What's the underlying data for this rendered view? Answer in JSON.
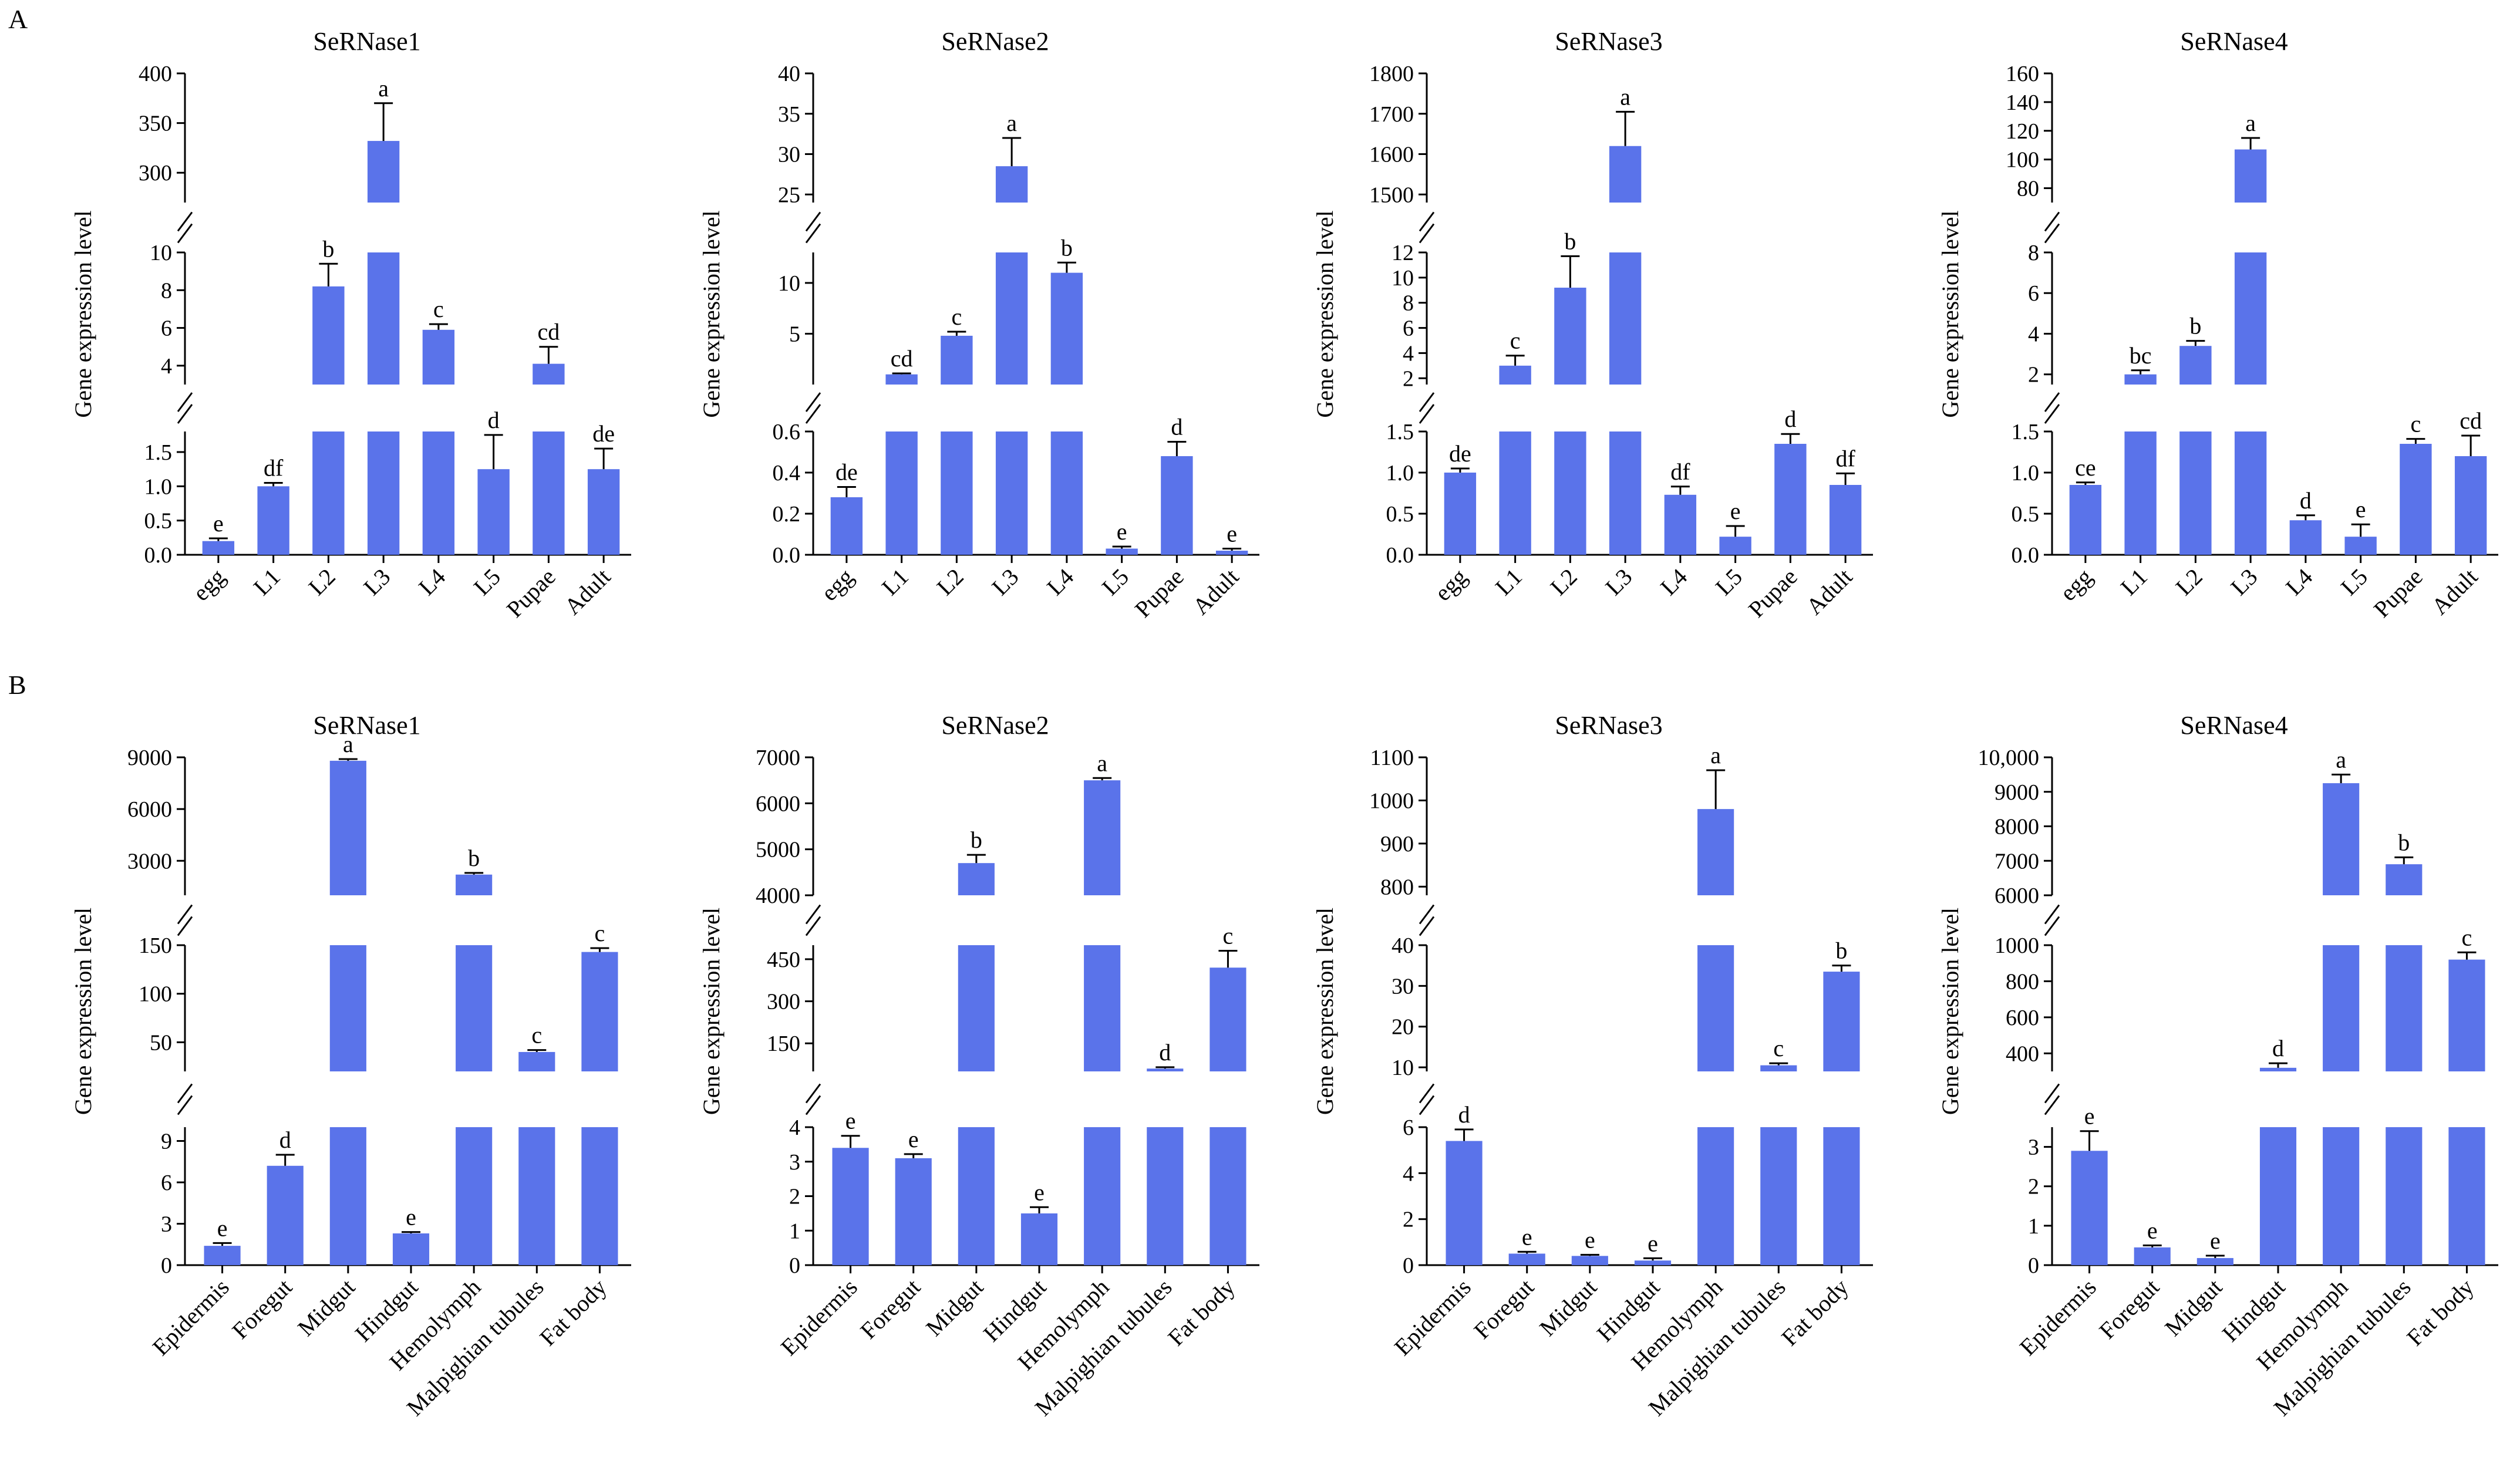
{
  "panel_labels": [
    "A",
    "B"
  ],
  "colors": {
    "bar": "#5a73ea",
    "axis": "#000000",
    "background": "#ffffff"
  },
  "chart_data": [
    {
      "type": "bar",
      "panel": "A",
      "title": "SeRNase1",
      "ylabel": "Gene expression level",
      "categories": [
        "egg",
        "L1",
        "L2",
        "L3",
        "L4",
        "L5",
        "Pupae",
        "Adult"
      ],
      "values": [
        0.2,
        1.0,
        8.2,
        332,
        5.9,
        1.25,
        4.1,
        1.25
      ],
      "errors": [
        0.04,
        0.05,
        1.2,
        38,
        0.3,
        0.5,
        0.9,
        0.3
      ],
      "letters": [
        "e",
        "df",
        "b",
        "a",
        "c",
        "d",
        "cd",
        "de"
      ],
      "segments": [
        {
          "range": [
            0,
            1.8
          ],
          "ticks": [
            0,
            0.5,
            1.0,
            1.5
          ],
          "labels": [
            "0.0",
            "0.5",
            "1.0",
            "1.5"
          ]
        },
        {
          "range": [
            3,
            10
          ],
          "ticks": [
            4,
            6,
            8,
            10
          ],
          "labels": [
            "4",
            "6",
            "8",
            "10"
          ]
        },
        {
          "range": [
            270,
            400
          ],
          "ticks": [
            300,
            350,
            400
          ],
          "labels": [
            "300",
            "350",
            "400"
          ]
        }
      ]
    },
    {
      "type": "bar",
      "panel": "A",
      "title": "SeRNase2",
      "ylabel": "Gene expression level",
      "categories": [
        "egg",
        "L1",
        "L2",
        "L3",
        "L4",
        "L5",
        "Pupae",
        "Adult"
      ],
      "values": [
        0.28,
        1.0,
        4.8,
        28.5,
        11.0,
        0.03,
        0.48,
        0.02
      ],
      "errors": [
        0.05,
        0.1,
        0.4,
        3.5,
        1.0,
        0.01,
        0.07,
        0.01
      ],
      "letters": [
        "de",
        "cd",
        "c",
        "a",
        "b",
        "e",
        "d",
        "e"
      ],
      "segments": [
        {
          "range": [
            0,
            0.6
          ],
          "ticks": [
            0,
            0.2,
            0.4,
            0.6
          ],
          "labels": [
            "0.0",
            "0.2",
            "0.4",
            "0.6"
          ]
        },
        {
          "range": [
            0,
            13
          ],
          "ticks": [
            5,
            10
          ],
          "labels": [
            "5",
            "10"
          ]
        },
        {
          "range": [
            24,
            40
          ],
          "ticks": [
            25,
            30,
            35,
            40
          ],
          "labels": [
            "25",
            "30",
            "35",
            "40"
          ]
        }
      ]
    },
    {
      "type": "bar",
      "panel": "A",
      "title": "SeRNase3",
      "ylabel": "Gene expression level",
      "categories": [
        "egg",
        "L1",
        "L2",
        "L3",
        "L4",
        "L5",
        "Pupae",
        "Adult"
      ],
      "values": [
        1.0,
        3.0,
        9.2,
        1620,
        0.73,
        0.22,
        1.35,
        0.85
      ],
      "errors": [
        0.05,
        0.8,
        2.5,
        85,
        0.1,
        0.13,
        0.12,
        0.14
      ],
      "letters": [
        "de",
        "c",
        "b",
        "a",
        "df",
        "e",
        "d",
        "df"
      ],
      "segments": [
        {
          "range": [
            0,
            1.5
          ],
          "ticks": [
            0,
            0.5,
            1.0,
            1.5
          ],
          "labels": [
            "0.0",
            "0.5",
            "1.0",
            "1.5"
          ]
        },
        {
          "range": [
            1.5,
            12
          ],
          "ticks": [
            2,
            4,
            6,
            8,
            10,
            12
          ],
          "labels": [
            "2",
            "4",
            "6",
            "8",
            "10",
            "12"
          ]
        },
        {
          "range": [
            1480,
            1800
          ],
          "ticks": [
            1500,
            1600,
            1700,
            1800
          ],
          "labels": [
            "1500",
            "1600",
            "1700",
            "1800"
          ]
        }
      ]
    },
    {
      "type": "bar",
      "panel": "A",
      "title": "SeRNase4",
      "ylabel": "Gene expression level",
      "categories": [
        "egg",
        "L1",
        "L2",
        "L3",
        "L4",
        "L5",
        "Pupae",
        "Adult"
      ],
      "values": [
        0.85,
        2.0,
        3.4,
        107,
        0.42,
        0.22,
        1.35,
        1.2
      ],
      "errors": [
        0.03,
        0.2,
        0.25,
        8,
        0.06,
        0.15,
        0.06,
        0.25
      ],
      "letters": [
        "ce",
        "bc",
        "b",
        "a",
        "d",
        "e",
        "c",
        "cd"
      ],
      "segments": [
        {
          "range": [
            0,
            1.5
          ],
          "ticks": [
            0,
            0.5,
            1.0,
            1.5
          ],
          "labels": [
            "0.0",
            "0.5",
            "1.0",
            "1.5"
          ]
        },
        {
          "range": [
            1.5,
            8
          ],
          "ticks": [
            2,
            4,
            6,
            8
          ],
          "labels": [
            "2",
            "4",
            "6",
            "8"
          ]
        },
        {
          "range": [
            70,
            160
          ],
          "ticks": [
            80,
            100,
            120,
            140,
            160
          ],
          "labels": [
            "80",
            "100",
            "120",
            "140",
            "160"
          ]
        }
      ]
    },
    {
      "type": "bar",
      "panel": "B",
      "title": "SeRNase1",
      "ylabel": "Gene expression level",
      "categories": [
        "Epidermis",
        "Foregut",
        "Midgut",
        "Hindgut",
        "Hemolymph",
        "Malpighian tubules",
        "Fat body"
      ],
      "values": [
        1.4,
        7.2,
        8800,
        2.3,
        2200,
        40,
        143
      ],
      "errors": [
        0.2,
        0.8,
        100,
        0.1,
        100,
        2,
        4
      ],
      "letters": [
        "e",
        "d",
        "a",
        "e",
        "b",
        "c",
        "c"
      ],
      "segments": [
        {
          "range": [
            0,
            10
          ],
          "ticks": [
            0,
            3,
            6,
            9
          ],
          "labels": [
            "0",
            "3",
            "6",
            "9"
          ]
        },
        {
          "range": [
            20,
            150
          ],
          "ticks": [
            50,
            100,
            150
          ],
          "labels": [
            "50",
            "100",
            "150"
          ]
        },
        {
          "range": [
            1000,
            9000
          ],
          "ticks": [
            3000,
            6000,
            9000
          ],
          "labels": [
            "3000",
            "6000",
            "9000"
          ]
        }
      ]
    },
    {
      "type": "bar",
      "panel": "B",
      "title": "SeRNase2",
      "ylabel": "Gene expression level",
      "categories": [
        "Epidermis",
        "Foregut",
        "Midgut",
        "Hindgut",
        "Hemolymph",
        "Malpighian tubules",
        "Fat body"
      ],
      "values": [
        3.4,
        3.1,
        4700,
        1.5,
        6500,
        60,
        420
      ],
      "errors": [
        0.35,
        0.12,
        180,
        0.18,
        50,
        5,
        60
      ],
      "letters": [
        "e",
        "e",
        "b",
        "e",
        "a",
        "d",
        "c"
      ],
      "segments": [
        {
          "range": [
            0,
            4
          ],
          "ticks": [
            0,
            1,
            2,
            3,
            4
          ],
          "labels": [
            "0",
            "1",
            "2",
            "3",
            "4"
          ]
        },
        {
          "range": [
            50,
            500
          ],
          "ticks": [
            150,
            300,
            450
          ],
          "labels": [
            "150",
            "300",
            "450"
          ]
        },
        {
          "range": [
            4000,
            7000
          ],
          "ticks": [
            4000,
            5000,
            6000,
            7000
          ],
          "labels": [
            "4000",
            "5000",
            "6000",
            "7000"
          ]
        }
      ]
    },
    {
      "type": "bar",
      "panel": "B",
      "title": "SeRNase3",
      "ylabel": "Gene expression level",
      "categories": [
        "Epidermis",
        "Foregut",
        "Midgut",
        "Hindgut",
        "Hemolymph",
        "Malpighian tubules",
        "Fat body"
      ],
      "values": [
        5.4,
        0.5,
        0.4,
        0.2,
        980,
        10.5,
        33.5
      ],
      "errors": [
        0.5,
        0.08,
        0.05,
        0.1,
        90,
        0.5,
        1.5
      ],
      "letters": [
        "d",
        "e",
        "e",
        "e",
        "a",
        "c",
        "b"
      ],
      "segments": [
        {
          "range": [
            0,
            6
          ],
          "ticks": [
            0,
            2,
            4,
            6
          ],
          "labels": [
            "0",
            "2",
            "4",
            "6"
          ]
        },
        {
          "range": [
            9,
            40
          ],
          "ticks": [
            10,
            20,
            30,
            40
          ],
          "labels": [
            "10",
            "20",
            "30",
            "40"
          ]
        },
        {
          "range": [
            780,
            1100
          ],
          "ticks": [
            800,
            900,
            1000,
            1100
          ],
          "labels": [
            "800",
            "900",
            "1000",
            "1100"
          ]
        }
      ]
    },
    {
      "type": "bar",
      "panel": "B",
      "title": "SeRNase4",
      "ylabel": "Gene expression level",
      "categories": [
        "Epidermis",
        "Foregut",
        "Midgut",
        "Hindgut",
        "Hemolymph",
        "Malpighian tubules",
        "Fat body"
      ],
      "values": [
        2.9,
        0.45,
        0.18,
        320,
        9250,
        6900,
        920
      ],
      "errors": [
        0.5,
        0.05,
        0.06,
        25,
        250,
        200,
        40
      ],
      "letters": [
        "e",
        "e",
        "e",
        "d",
        "a",
        "b",
        "c"
      ],
      "segments": [
        {
          "range": [
            0,
            3.5
          ],
          "ticks": [
            0,
            1,
            2,
            3
          ],
          "labels": [
            "0",
            "1",
            "2",
            "3"
          ]
        },
        {
          "range": [
            300,
            1000
          ],
          "ticks": [
            400,
            600,
            800,
            1000
          ],
          "labels": [
            "400",
            "600",
            "800",
            "1000"
          ]
        },
        {
          "range": [
            6000,
            10000
          ],
          "ticks": [
            6000,
            7000,
            8000,
            9000,
            10000
          ],
          "labels": [
            "6000",
            "7000",
            "8000",
            "9000",
            "10,000"
          ]
        }
      ]
    }
  ]
}
